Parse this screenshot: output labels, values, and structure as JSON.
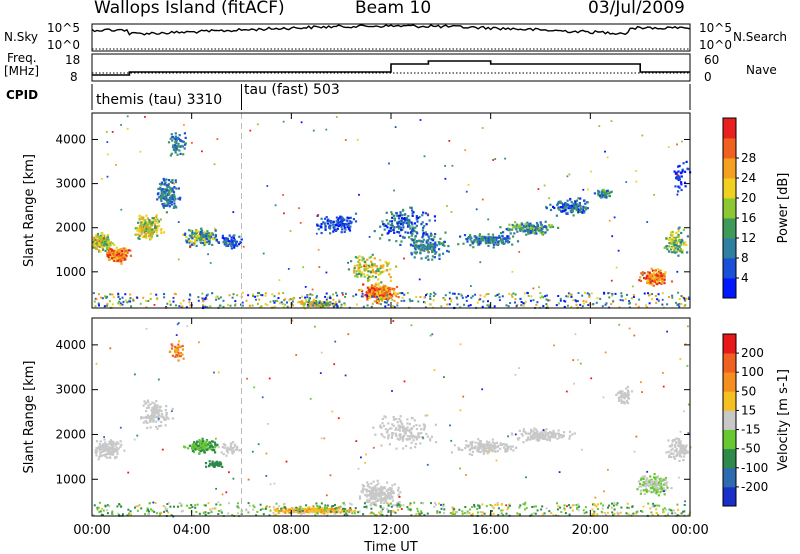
{
  "header": {
    "station": "Wallops Island (fitACF)",
    "beam": "Beam 10",
    "date": "03/Jul/2009"
  },
  "summary": {
    "nsky_label": "N.Sky",
    "nsearch_label": "N.Search",
    "freq_label_1": "Freq.",
    "freq_label_2": "[MHz]",
    "nave_label": "Nave",
    "cpid_label": "CPID",
    "noise_ticks": [
      "10^5",
      "10^0"
    ],
    "freq_ticks": [
      "18",
      "8"
    ],
    "nave_ticks": [
      "60",
      "0"
    ],
    "cpid_segments": [
      {
        "label": "themis (tau) 3310",
        "start_h": 0,
        "end_h": 6
      },
      {
        "label": "tau (fast) 503",
        "start_h": 6,
        "end_h": 24
      }
    ]
  },
  "chart_data": [
    {
      "type": "heatmap",
      "name": "power",
      "ylabel": "Slant Range [km]",
      "xlim_hours": [
        0,
        24
      ],
      "ylim_km": [
        180,
        4600
      ],
      "yticks": [
        1000,
        2000,
        3000,
        4000
      ],
      "colorbar_label": "Power [dB]",
      "colorbar_ticks": [
        "4",
        "8",
        "12",
        "16",
        "20",
        "24",
        "28"
      ],
      "colorbar_colors": [
        "#0018ff",
        "#1a4fd8",
        "#2e7fa0",
        "#3f9a5a",
        "#8cc832",
        "#f0d020",
        "#f5a020",
        "#f06020",
        "#e82020"
      ]
    },
    {
      "type": "heatmap",
      "name": "velocity",
      "ylabel": "Slant Range [km]",
      "xlabel": "Time UT",
      "xticks": [
        "00:00",
        "04:00",
        "08:00",
        "12:00",
        "16:00",
        "20:00",
        "00:00"
      ],
      "xlim_hours": [
        0,
        24
      ],
      "ylim_km": [
        180,
        4600
      ],
      "yticks": [
        1000,
        2000,
        3000,
        4000
      ],
      "colorbar_label": "Velocity [m s-1]",
      "colorbar_ticks": [
        "200",
        "100",
        "50",
        "15",
        "-15",
        "-50",
        "-100",
        "-200"
      ],
      "colorbar_colors": [
        "#1a2ec8",
        "#2e6ab0",
        "#2e8a4a",
        "#68c830",
        "#c8c8c8",
        "#f5c020",
        "#f59020",
        "#f06020",
        "#e81818"
      ]
    }
  ]
}
